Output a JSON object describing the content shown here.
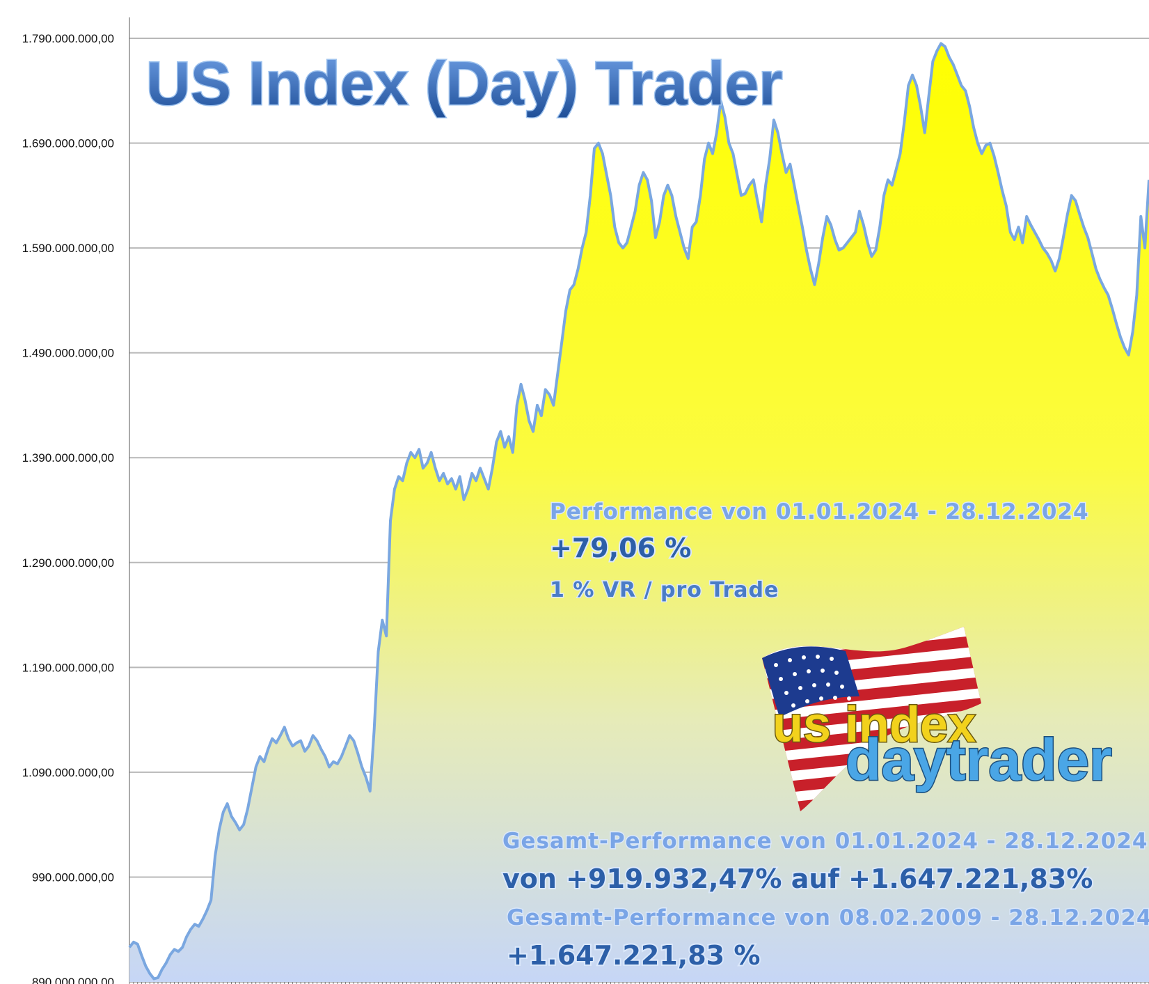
{
  "chart_data": {
    "type": "area",
    "title": "US Index (Day) Trader",
    "xlabel": "",
    "ylabel": "",
    "ylim": [
      890000000,
      1810000000
    ],
    "yticks": [
      890000000,
      990000000,
      1090000000,
      1190000000,
      1290000000,
      1390000000,
      1490000000,
      1590000000,
      1690000000,
      1790000000
    ],
    "ytick_labels": [
      "890.000.000,00",
      "990.000.000,00",
      "1.090.000.000,00",
      "1.190.000.000,00",
      "1.290.000.000,00",
      "1.390.000.000,00",
      "1.490.000.000,00",
      "1.590.000.000,00",
      "1.690.000.000,00",
      "1.790.000.000,00"
    ],
    "grid": true,
    "fill_color_top": "#ffff00",
    "fill_color_bottom": "#c8d8f6",
    "line_color": "#7aa7e0",
    "values": [
      923000000,
      928000000,
      926000000,
      915000000,
      905000000,
      898000000,
      893000000,
      894000000,
      902000000,
      908000000,
      916000000,
      921000000,
      919000000,
      923000000,
      933000000,
      940000000,
      945000000,
      943000000,
      950000000,
      958000000,
      968000000,
      1010000000,
      1035000000,
      1052000000,
      1060000000,
      1048000000,
      1042000000,
      1035000000,
      1040000000,
      1055000000,
      1075000000,
      1095000000,
      1105000000,
      1100000000,
      1112000000,
      1122000000,
      1118000000,
      1125000000,
      1133000000,
      1122000000,
      1115000000,
      1118000000,
      1120000000,
      1110000000,
      1115000000,
      1125000000,
      1120000000,
      1112000000,
      1105000000,
      1095000000,
      1100000000,
      1098000000,
      1105000000,
      1115000000,
      1125000000,
      1120000000,
      1108000000,
      1095000000,
      1085000000,
      1072000000,
      1130000000,
      1205000000,
      1235000000,
      1220000000,
      1330000000,
      1360000000,
      1372000000,
      1368000000,
      1385000000,
      1395000000,
      1390000000,
      1398000000,
      1380000000,
      1385000000,
      1395000000,
      1380000000,
      1368000000,
      1375000000,
      1365000000,
      1370000000,
      1360000000,
      1372000000,
      1350000000,
      1360000000,
      1375000000,
      1368000000,
      1380000000,
      1370000000,
      1360000000,
      1380000000,
      1405000000,
      1415000000,
      1400000000,
      1410000000,
      1395000000,
      1440000000,
      1460000000,
      1445000000,
      1425000000,
      1415000000,
      1440000000,
      1430000000,
      1455000000,
      1450000000,
      1440000000,
      1470000000,
      1500000000,
      1530000000,
      1550000000,
      1555000000,
      1570000000,
      1590000000,
      1605000000,
      1640000000,
      1685000000,
      1690000000,
      1680000000,
      1660000000,
      1640000000,
      1610000000,
      1595000000,
      1590000000,
      1595000000,
      1610000000,
      1625000000,
      1650000000,
      1662000000,
      1655000000,
      1635000000,
      1600000000,
      1615000000,
      1640000000,
      1650000000,
      1640000000,
      1620000000,
      1605000000,
      1590000000,
      1580000000,
      1610000000,
      1615000000,
      1640000000,
      1675000000,
      1690000000,
      1680000000,
      1700000000,
      1730000000,
      1715000000,
      1690000000,
      1680000000,
      1660000000,
      1640000000,
      1642000000,
      1650000000,
      1655000000,
      1635000000,
      1615000000,
      1650000000,
      1675000000,
      1712000000,
      1700000000,
      1680000000,
      1662000000,
      1670000000,
      1650000000,
      1630000000,
      1610000000,
      1588000000,
      1570000000,
      1555000000,
      1575000000,
      1600000000,
      1620000000,
      1612000000,
      1598000000,
      1588000000,
      1590000000,
      1595000000,
      1600000000,
      1605000000,
      1625000000,
      1612000000,
      1595000000,
      1582000000,
      1588000000,
      1610000000,
      1640000000,
      1655000000,
      1650000000,
      1665000000,
      1680000000,
      1710000000,
      1745000000,
      1755000000,
      1745000000,
      1725000000,
      1700000000,
      1735000000,
      1768000000,
      1778000000,
      1785000000,
      1782000000,
      1772000000,
      1765000000,
      1755000000,
      1745000000,
      1740000000,
      1725000000,
      1705000000,
      1690000000,
      1680000000,
      1688000000,
      1690000000,
      1678000000,
      1662000000,
      1645000000,
      1630000000,
      1605000000,
      1598000000,
      1610000000,
      1595000000,
      1620000000,
      1612000000,
      1605000000,
      1598000000,
      1590000000,
      1585000000,
      1578000000,
      1568000000,
      1580000000,
      1600000000,
      1622000000,
      1640000000,
      1635000000,
      1622000000,
      1610000000,
      1600000000,
      1585000000,
      1570000000,
      1560000000,
      1552000000,
      1545000000,
      1532000000,
      1518000000,
      1505000000,
      1495000000,
      1488000000,
      1510000000,
      1545000000,
      1620000000,
      1590000000,
      1655000000
    ],
    "annotations": {
      "period_header": "Performance  von  01.01.2024 - 28.12.2024",
      "period_value": "+79,06 %",
      "risk_note": "1 % VR / pro Trade",
      "total_header_1": "Gesamt-Performance  von  01.01.2024 - 28.12.2024",
      "total_value_1": "von +919.932,47% auf  +1.647.221,83%",
      "total_header_2": "Gesamt-Performance  von  08.02.2009 - 28.12.2024",
      "total_value_2": "+1.647.221,83 %"
    },
    "logo": {
      "line1": "us index",
      "line2": "daytrader"
    }
  }
}
